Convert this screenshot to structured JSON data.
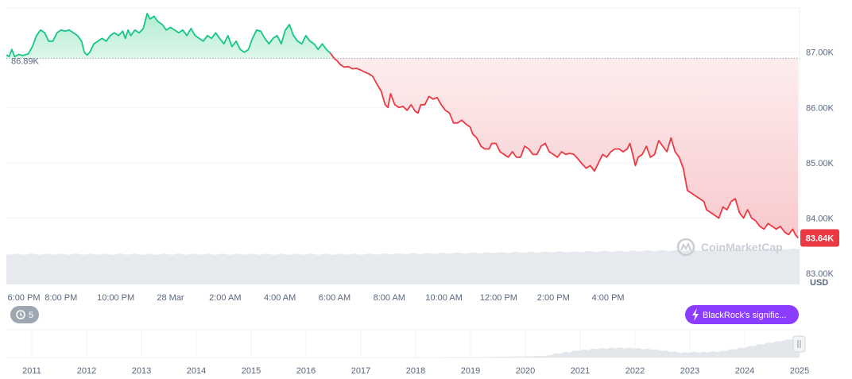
{
  "chart_data": {
    "type": "line",
    "currency_label": "USD",
    "ylim": [
      82800,
      87800
    ],
    "y_ticks": [
      {
        "value": 87000,
        "label": "87.00K"
      },
      {
        "value": 86000,
        "label": "86.00K"
      },
      {
        "value": 85000,
        "label": "85.00K"
      },
      {
        "value": 84000,
        "label": "84.00K"
      },
      {
        "value": 83000,
        "label": "83.00K"
      }
    ],
    "x_ticks": [
      "6:00 PM",
      "8:00 PM",
      "10:00 PM",
      "28 Mar",
      "2:00 AM",
      "4:00 AM",
      "6:00 AM",
      "8:00 AM",
      "10:00 AM",
      "12:00 PM",
      "2:00 PM",
      "4:00 PM"
    ],
    "x_range_hours": [
      0,
      24
    ],
    "baseline": {
      "value": 86890,
      "label": "86.89K"
    },
    "current": {
      "value": 83640,
      "label": "83.64K"
    },
    "colors": {
      "up": "#16c784",
      "down": "#ea3943",
      "up_fill": "#bff0d8",
      "down_fill": "#fde0e2",
      "grid": "#eff2f5",
      "axis_text": "#58667e"
    },
    "points": [
      [
        0.0,
        86950
      ],
      [
        0.1,
        86920
      ],
      [
        0.2,
        87050
      ],
      [
        0.3,
        86920
      ],
      [
        0.45,
        86960
      ],
      [
        0.6,
        86940
      ],
      [
        0.8,
        86970
      ],
      [
        0.95,
        87100
      ],
      [
        1.1,
        87300
      ],
      [
        1.25,
        87400
      ],
      [
        1.4,
        87350
      ],
      [
        1.55,
        87200
      ],
      [
        1.7,
        87200
      ],
      [
        1.85,
        87350
      ],
      [
        2.0,
        87400
      ],
      [
        2.15,
        87380
      ],
      [
        2.3,
        87400
      ],
      [
        2.45,
        87350
      ],
      [
        2.6,
        87300
      ],
      [
        2.75,
        87200
      ],
      [
        2.85,
        87000
      ],
      [
        2.95,
        86950
      ],
      [
        3.05,
        87000
      ],
      [
        3.2,
        87150
      ],
      [
        3.35,
        87200
      ],
      [
        3.5,
        87250
      ],
      [
        3.65,
        87200
      ],
      [
        3.8,
        87300
      ],
      [
        3.95,
        87350
      ],
      [
        4.1,
        87300
      ],
      [
        4.25,
        87380
      ],
      [
        4.35,
        87250
      ],
      [
        4.45,
        87400
      ],
      [
        4.55,
        87300
      ],
      [
        4.7,
        87400
      ],
      [
        4.85,
        87350
      ],
      [
        5.0,
        87420
      ],
      [
        5.15,
        87700
      ],
      [
        5.25,
        87600
      ],
      [
        5.4,
        87650
      ],
      [
        5.55,
        87550
      ],
      [
        5.7,
        87500
      ],
      [
        5.85,
        87400
      ],
      [
        6.0,
        87450
      ],
      [
        6.15,
        87400
      ],
      [
        6.3,
        87350
      ],
      [
        6.45,
        87400
      ],
      [
        6.6,
        87300
      ],
      [
        6.75,
        87430
      ],
      [
        6.9,
        87300
      ],
      [
        7.05,
        87250
      ],
      [
        7.2,
        87200
      ],
      [
        7.35,
        87300
      ],
      [
        7.5,
        87250
      ],
      [
        7.65,
        87350
      ],
      [
        7.8,
        87250
      ],
      [
        7.95,
        87150
      ],
      [
        8.1,
        87300
      ],
      [
        8.25,
        87100
      ],
      [
        8.4,
        87200
      ],
      [
        8.55,
        87050
      ],
      [
        8.7,
        87000
      ],
      [
        8.85,
        87050
      ],
      [
        9.0,
        87250
      ],
      [
        9.15,
        87400
      ],
      [
        9.3,
        87380
      ],
      [
        9.45,
        87250
      ],
      [
        9.6,
        87150
      ],
      [
        9.75,
        87250
      ],
      [
        9.9,
        87300
      ],
      [
        10.05,
        87150
      ],
      [
        10.2,
        87400
      ],
      [
        10.35,
        87500
      ],
      [
        10.5,
        87300
      ],
      [
        10.65,
        87200
      ],
      [
        10.8,
        87150
      ],
      [
        10.95,
        87300
      ],
      [
        11.1,
        87200
      ],
      [
        11.25,
        87150
      ],
      [
        11.4,
        87050
      ],
      [
        11.55,
        87150
      ],
      [
        11.7,
        87050
      ],
      [
        11.85,
        86980
      ],
      [
        12.0,
        86880
      ],
      [
        12.1,
        86840
      ],
      [
        12.2,
        86780
      ],
      [
        12.35,
        86730
      ],
      [
        12.5,
        86740
      ],
      [
        12.65,
        86700
      ],
      [
        12.8,
        86710
      ],
      [
        12.95,
        86680
      ],
      [
        13.1,
        86640
      ],
      [
        13.25,
        86610
      ],
      [
        13.4,
        86560
      ],
      [
        13.55,
        86420
      ],
      [
        13.7,
        86300
      ],
      [
        13.85,
        86050
      ],
      [
        13.95,
        86000
      ],
      [
        14.05,
        86250
      ],
      [
        14.2,
        86050
      ],
      [
        14.35,
        86000
      ],
      [
        14.5,
        86020
      ],
      [
        14.65,
        85950
      ],
      [
        14.8,
        86050
      ],
      [
        14.95,
        85930
      ],
      [
        15.05,
        85900
      ],
      [
        15.15,
        86050
      ],
      [
        15.3,
        86050
      ],
      [
        15.45,
        86200
      ],
      [
        15.6,
        86150
      ],
      [
        15.75,
        86180
      ],
      [
        15.9,
        86050
      ],
      [
        16.05,
        85950
      ],
      [
        16.2,
        85900
      ],
      [
        16.35,
        85720
      ],
      [
        16.5,
        85720
      ],
      [
        16.65,
        85770
      ],
      [
        16.8,
        85700
      ],
      [
        16.95,
        85650
      ],
      [
        17.05,
        85520
      ],
      [
        17.2,
        85450
      ],
      [
        17.35,
        85300
      ],
      [
        17.5,
        85250
      ],
      [
        17.65,
        85250
      ],
      [
        17.75,
        85350
      ],
      [
        17.9,
        85350
      ],
      [
        18.05,
        85200
      ],
      [
        18.2,
        85150
      ],
      [
        18.35,
        85100
      ],
      [
        18.5,
        85200
      ],
      [
        18.65,
        85100
      ],
      [
        18.8,
        85100
      ],
      [
        18.95,
        85300
      ],
      [
        19.1,
        85250
      ],
      [
        19.25,
        85150
      ],
      [
        19.4,
        85150
      ],
      [
        19.55,
        85300
      ],
      [
        19.7,
        85350
      ],
      [
        19.85,
        85200
      ],
      [
        20.0,
        85150
      ],
      [
        20.15,
        85100
      ],
      [
        20.3,
        85200
      ],
      [
        20.45,
        85150
      ],
      [
        20.6,
        85170
      ],
      [
        20.75,
        85150
      ],
      [
        20.9,
        85070
      ],
      [
        21.05,
        84980
      ],
      [
        21.2,
        84900
      ],
      [
        21.35,
        84950
      ],
      [
        21.5,
        84850
      ],
      [
        21.65,
        85000
      ],
      [
        21.8,
        85150
      ],
      [
        21.95,
        85100
      ],
      [
        22.1,
        85200
      ],
      [
        22.25,
        85250
      ],
      [
        22.4,
        85250
      ],
      [
        22.55,
        85200
      ],
      [
        22.7,
        85250
      ],
      [
        22.8,
        85350
      ],
      [
        22.9,
        85150
      ],
      [
        23.0,
        84950
      ],
      [
        23.1,
        85100
      ],
      [
        23.25,
        85150
      ],
      [
        23.4,
        85300
      ],
      [
        23.55,
        85100
      ],
      [
        23.7,
        85150
      ],
      [
        23.85,
        85400
      ],
      [
        24.0,
        85300
      ],
      [
        24.15,
        85200
      ],
      [
        24.3,
        85450
      ],
      [
        24.45,
        85200
      ],
      [
        24.6,
        85100
      ],
      [
        24.75,
        84900
      ],
      [
        24.9,
        84500
      ],
      [
        25.05,
        84450
      ],
      [
        25.2,
        84400
      ],
      [
        25.35,
        84350
      ],
      [
        25.5,
        84300
      ],
      [
        25.6,
        84150
      ],
      [
        25.75,
        84100
      ],
      [
        25.9,
        84050
      ],
      [
        26.05,
        84000
      ],
      [
        26.2,
        84200
      ],
      [
        26.35,
        84150
      ],
      [
        26.5,
        84300
      ],
      [
        26.65,
        84350
      ],
      [
        26.8,
        84100
      ],
      [
        26.95,
        84000
      ],
      [
        27.1,
        84150
      ],
      [
        27.25,
        84000
      ],
      [
        27.4,
        83950
      ],
      [
        27.55,
        83850
      ],
      [
        27.7,
        83800
      ],
      [
        27.85,
        83900
      ],
      [
        28.0,
        83850
      ],
      [
        28.15,
        83800
      ],
      [
        28.3,
        83850
      ],
      [
        28.45,
        83750
      ],
      [
        28.6,
        83700
      ],
      [
        28.75,
        83800
      ],
      [
        28.85,
        83700
      ],
      [
        28.95,
        83640
      ]
    ],
    "volume_note": "volume band",
    "navigator": {
      "years": [
        "2011",
        "2012",
        "2013",
        "2014",
        "2015",
        "2016",
        "2017",
        "2018",
        "2019",
        "2020",
        "2021",
        "2022",
        "2023",
        "2024",
        "2025"
      ]
    }
  },
  "watermark": {
    "brand": "CoinMarketCap"
  },
  "history_button": {
    "label": "5"
  },
  "news_pill": {
    "label": "BlackRock's signific..."
  }
}
